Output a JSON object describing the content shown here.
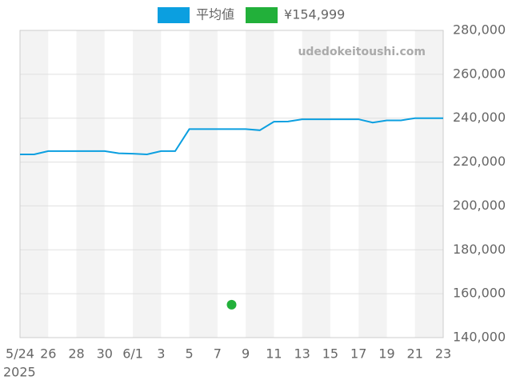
{
  "chart_data": {
    "type": "line",
    "watermark": "udedokeitoushi.com",
    "categories": [
      "5/24",
      null,
      "26",
      null,
      "28",
      null,
      "30",
      null,
      "6/1",
      null,
      "3",
      null,
      "5",
      null,
      "7",
      null,
      "9",
      null,
      "11",
      null,
      "13",
      null,
      "15",
      null,
      "17",
      null,
      "19",
      null,
      "21",
      null,
      "23"
    ],
    "x_year_label": "2025",
    "series": [
      {
        "name": "平均値",
        "color": "#0b9fe0",
        "style": "line",
        "values": [
          223500,
          223500,
          225000,
          225000,
          225000,
          225000,
          225000,
          224000,
          223800,
          223500,
          225000,
          225000,
          235000,
          235000,
          235000,
          235000,
          235000,
          234500,
          238400,
          238500,
          239500,
          239500,
          239500,
          239500,
          239500,
          238000,
          239000,
          239000,
          240000,
          240000,
          240000
        ]
      },
      {
        "name": "¥154,999",
        "color": "#22b03a",
        "style": "dot",
        "values": [
          null,
          null,
          null,
          null,
          null,
          null,
          null,
          null,
          null,
          null,
          null,
          null,
          null,
          null,
          null,
          154999,
          null,
          null,
          null,
          null,
          null,
          null,
          null,
          null,
          null,
          null,
          null,
          null,
          null,
          null,
          null
        ]
      }
    ],
    "ylim": [
      140000,
      280000
    ],
    "yticks": [
      {
        "value": 140000,
        "label": "140,000"
      },
      {
        "value": 160000,
        "label": "160,000"
      },
      {
        "value": 180000,
        "label": "180,000"
      },
      {
        "value": 200000,
        "label": "200,000"
      },
      {
        "value": 220000,
        "label": "220,000"
      },
      {
        "value": 240000,
        "label": "240,000"
      },
      {
        "value": 260000,
        "label": "260,000"
      },
      {
        "value": 280000,
        "label": "280,000"
      }
    ],
    "grid": true,
    "legend": "top"
  }
}
